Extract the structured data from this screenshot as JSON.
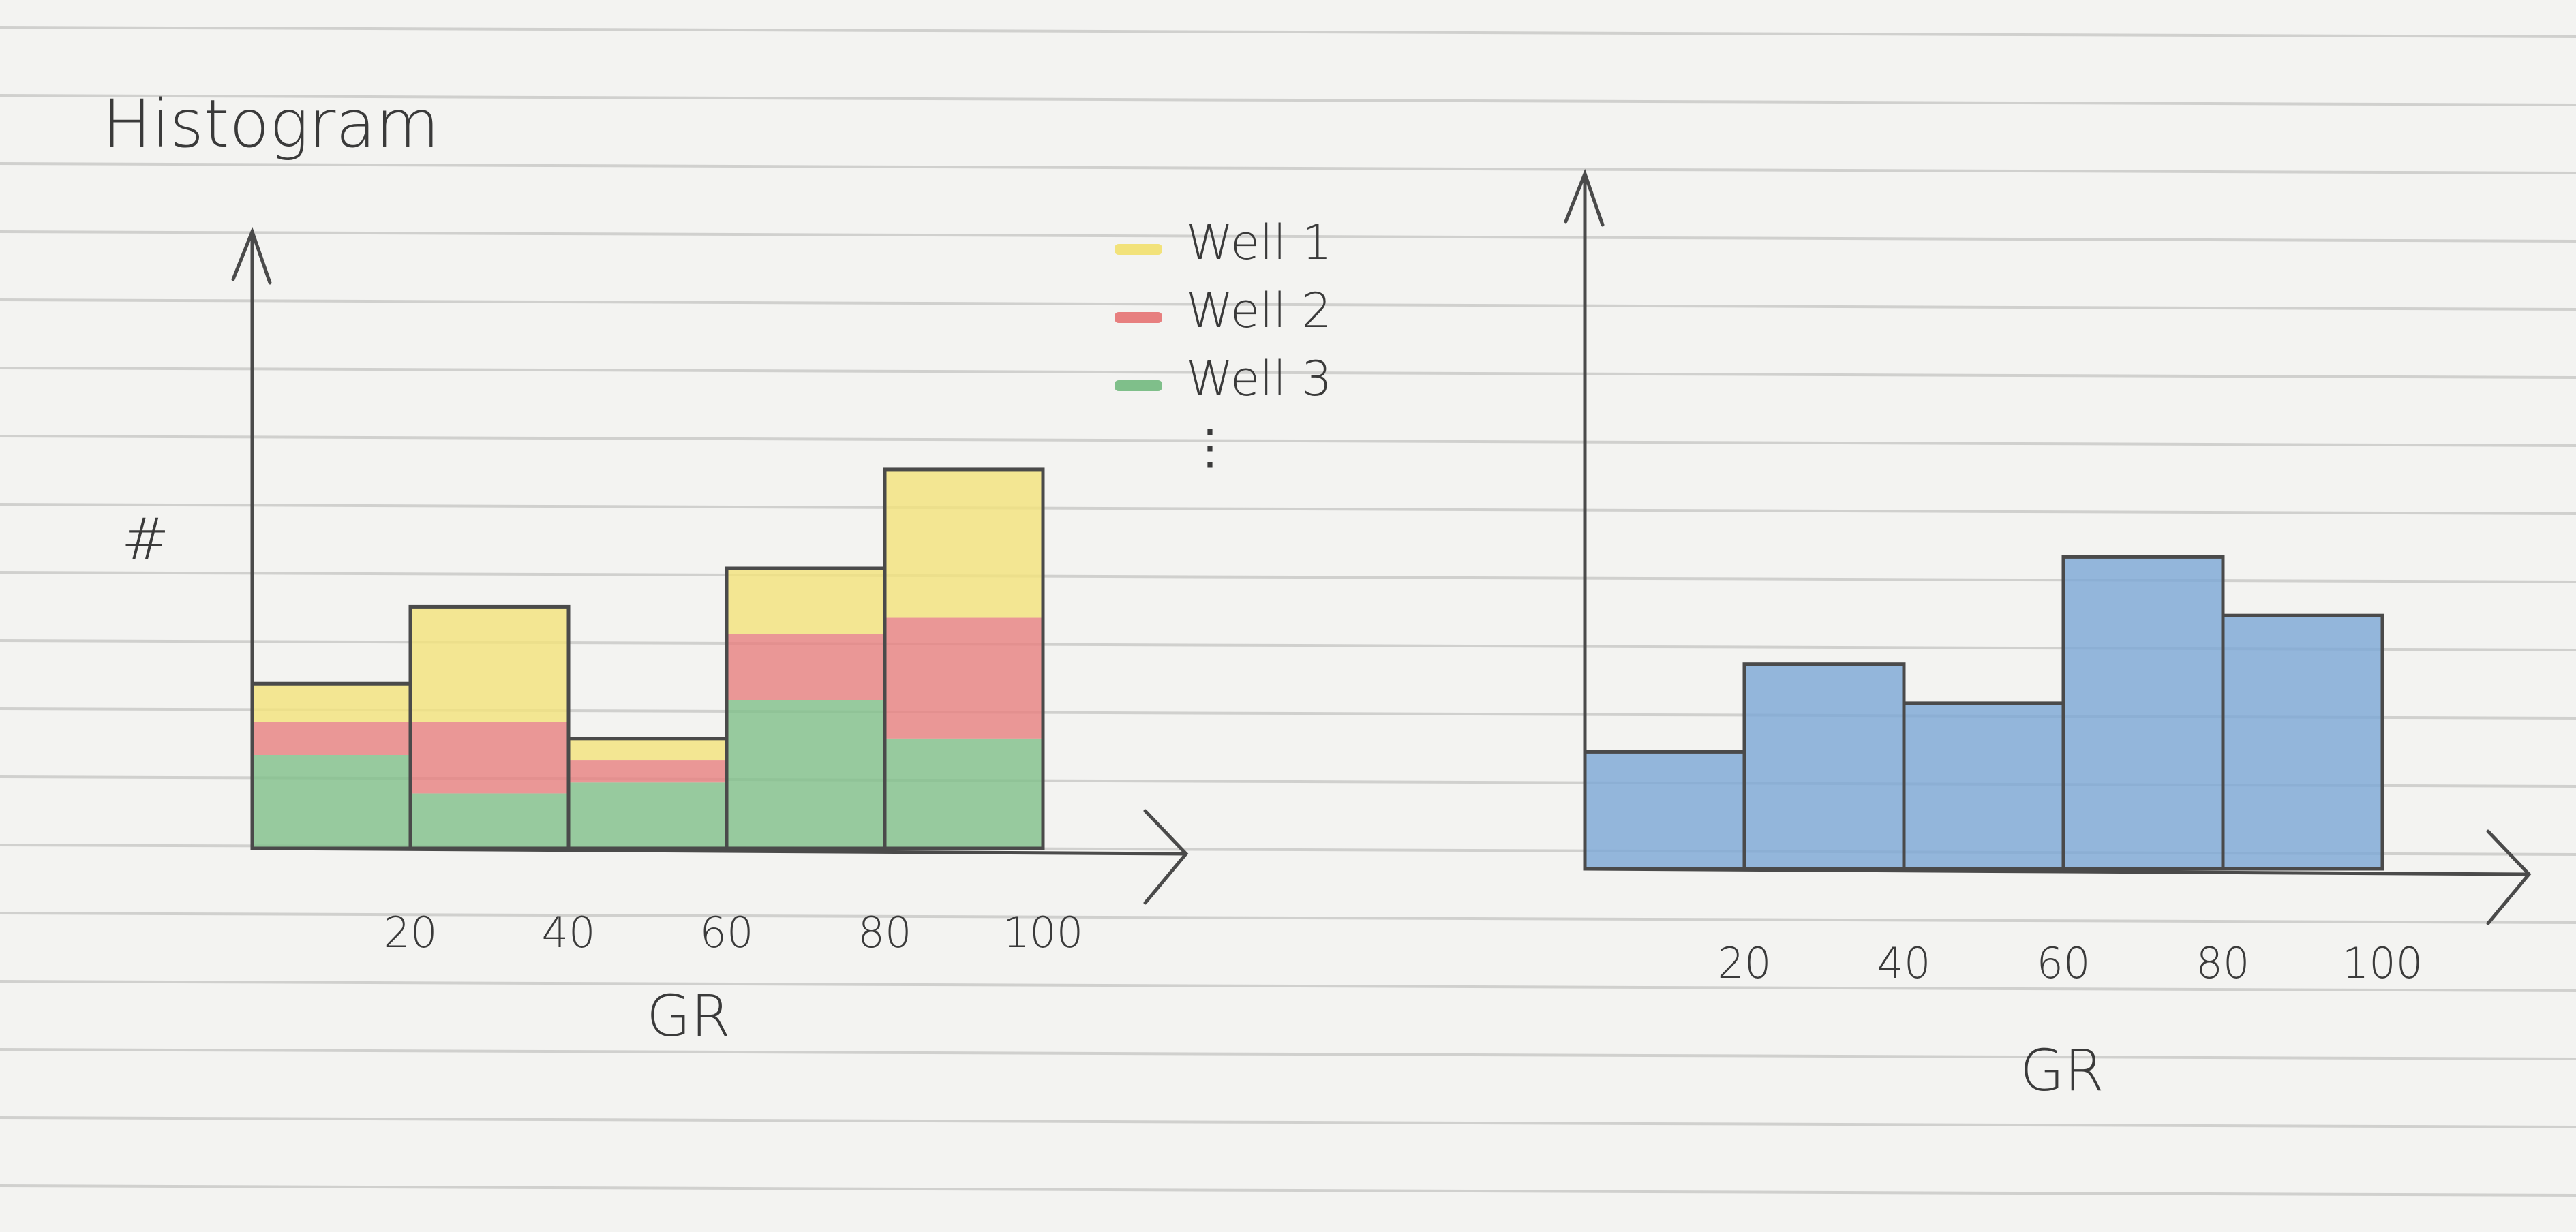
{
  "page": {
    "title": "Histogram"
  },
  "chart_data": [
    {
      "type": "bar",
      "stacked": true,
      "title": "Histogram",
      "xlabel": "GR",
      "ylabel": "#",
      "x_ticks": [
        "20",
        "40",
        "60",
        "80",
        "100"
      ],
      "bins": [
        [
          0,
          20
        ],
        [
          20,
          40
        ],
        [
          40,
          60
        ],
        [
          60,
          80
        ],
        [
          80,
          100
        ]
      ],
      "series": [
        {
          "name": "Well 3",
          "color": "#7fbf8a",
          "values": [
            17,
            10,
            12,
            27,
            20
          ]
        },
        {
          "name": "Well 2",
          "color": "#e77f7f",
          "values": [
            6,
            13,
            4,
            12,
            22
          ]
        },
        {
          "name": "Well 1",
          "color": "#f2e27a",
          "values": [
            7,
            21,
            4,
            12,
            27
          ]
        }
      ],
      "legend": [
        "Well 1",
        "Well 2",
        "Well 3",
        "⋮"
      ],
      "legend_position": "top-right",
      "ylim": [
        0,
        85
      ],
      "grid": false
    },
    {
      "type": "bar",
      "title": "",
      "xlabel": "GR",
      "ylabel": "",
      "x_ticks": [
        "20",
        "40",
        "60",
        "80",
        "100"
      ],
      "bins": [
        [
          0,
          20
        ],
        [
          20,
          40
        ],
        [
          40,
          60
        ],
        [
          60,
          80
        ],
        [
          80,
          100
        ]
      ],
      "series": [
        {
          "color": "#7aa6d6",
          "values": [
            24,
            42,
            34,
            64,
            52
          ]
        }
      ],
      "ylim": [
        0,
        100
      ],
      "grid": false
    }
  ]
}
